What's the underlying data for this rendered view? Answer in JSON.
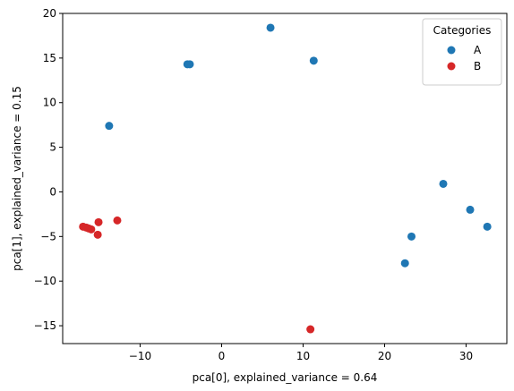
{
  "chart_data": {
    "type": "scatter",
    "title": "",
    "xlabel": "pca[0], explained_variance = 0.64",
    "ylabel": "pca[1], explained_variance = 0.15",
    "xlim": [
      -19.5,
      35.0
    ],
    "ylim": [
      -17.0,
      20.0
    ],
    "xticks": [
      -10,
      0,
      10,
      20,
      30
    ],
    "xtick_labels": [
      "−10",
      "0",
      "10",
      "20",
      "30"
    ],
    "yticks": [
      -15,
      -10,
      -5,
      0,
      5,
      10,
      15,
      20
    ],
    "ytick_labels": [
      "−15",
      "−10",
      "−5",
      "0",
      "5",
      "10",
      "15",
      "20"
    ],
    "grid": false,
    "legend": {
      "title": "Categories",
      "placement": "top-right"
    },
    "series": [
      {
        "name": "A",
        "color": "#1f77b4",
        "points": [
          {
            "x": 6.0,
            "y": 18.4
          },
          {
            "x": 11.3,
            "y": 14.7
          },
          {
            "x": -4.2,
            "y": 14.3
          },
          {
            "x": -3.9,
            "y": 14.3
          },
          {
            "x": -13.8,
            "y": 7.4
          },
          {
            "x": 27.2,
            "y": 0.9
          },
          {
            "x": 30.5,
            "y": -2.0
          },
          {
            "x": 32.6,
            "y": -3.9
          },
          {
            "x": 23.3,
            "y": -5.0
          },
          {
            "x": 22.5,
            "y": -8.0
          }
        ]
      },
      {
        "name": "B",
        "color": "#d62728",
        "points": [
          {
            "x": -17.0,
            "y": -3.9
          },
          {
            "x": -16.6,
            "y": -4.0
          },
          {
            "x": -16.3,
            "y": -4.1
          },
          {
            "x": -16.0,
            "y": -4.2
          },
          {
            "x": -15.1,
            "y": -3.4
          },
          {
            "x": -12.8,
            "y": -3.2
          },
          {
            "x": -15.2,
            "y": -4.8
          },
          {
            "x": 10.9,
            "y": -15.4
          }
        ]
      }
    ]
  }
}
